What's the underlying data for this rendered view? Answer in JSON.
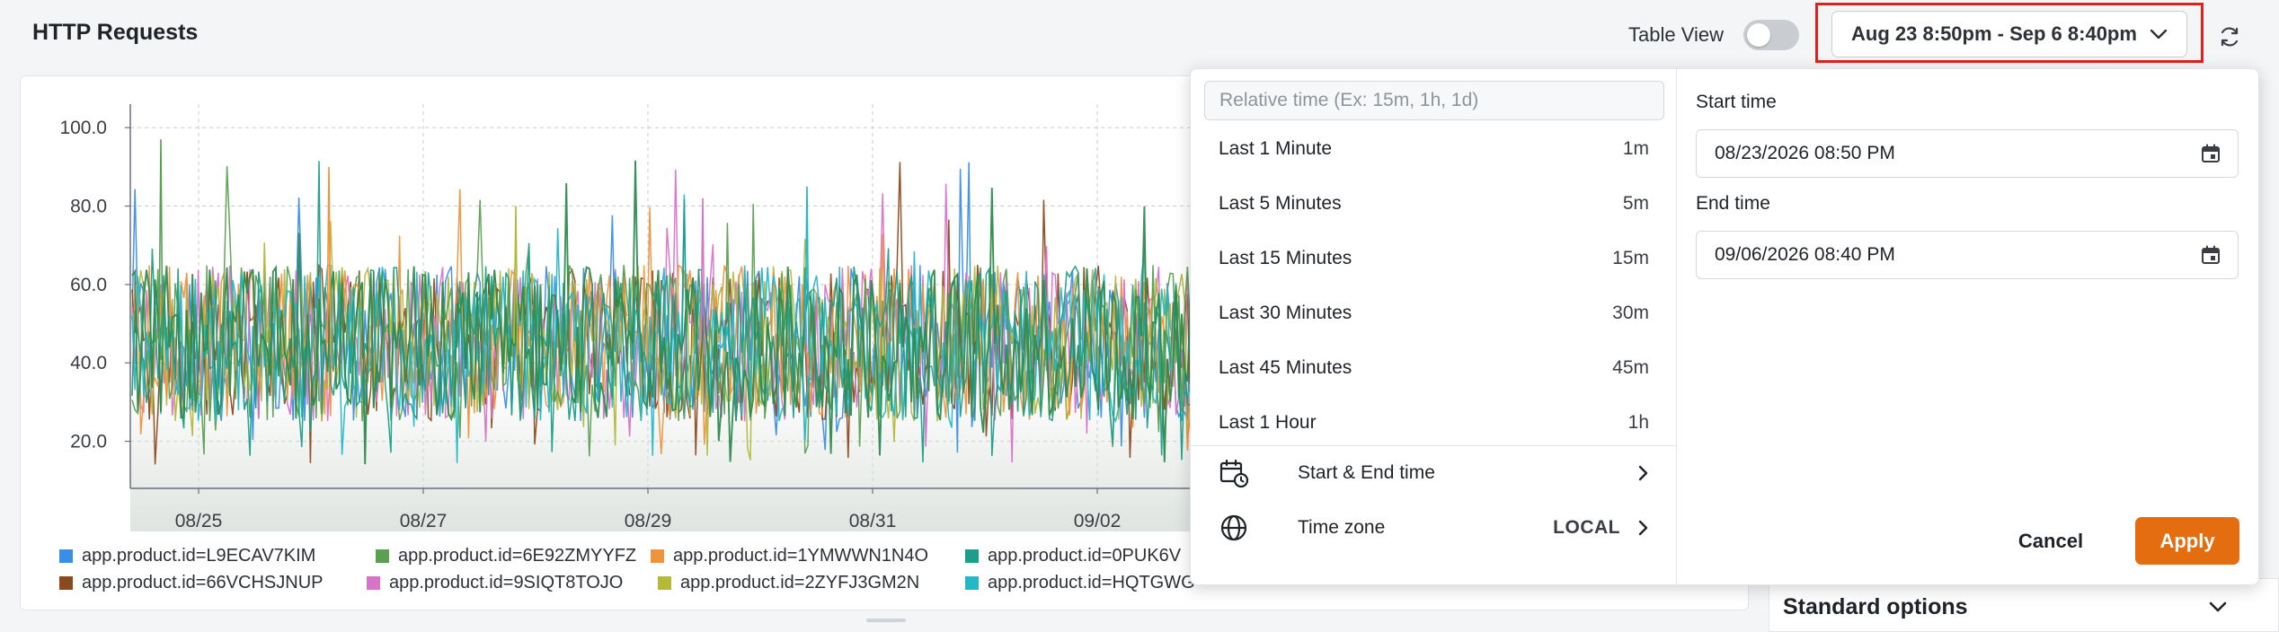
{
  "header": {
    "title": "HTTP Requests",
    "table_view_label": "Table View",
    "table_view_on": false,
    "range_label": "Aug 23 8:50pm - Sep 6 8:40pm"
  },
  "chart_data": {
    "type": "line",
    "y_ticks": [
      "100.0",
      "80.0",
      "60.0",
      "40.0",
      "20.0"
    ],
    "x_ticks": [
      "08/25",
      "08/27",
      "08/29",
      "08/31",
      "09/02"
    ],
    "ylim": [
      8,
      106
    ],
    "grid": true,
    "legend_placement": "bottom",
    "legend": [
      {
        "label": "app.product.id=L9ECAV7KIM",
        "color": "#3a8ee6"
      },
      {
        "label": "app.product.id=6E92ZMYYFZ",
        "color": "#5aa051"
      },
      {
        "label": "app.product.id=1YMWWN1N4O",
        "color": "#f0943b"
      },
      {
        "label": "app.product.id=0PUK6V",
        "color": "#1b9e8a"
      },
      {
        "label": "app.product.id=66VCHSJNUP",
        "color": "#8c4a1c"
      },
      {
        "label": "app.product.id=9SIQT8TOJO",
        "color": "#d972c9"
      },
      {
        "label": "app.product.id=2ZYFJ3GM2N",
        "color": "#b5b83a"
      },
      {
        "label": "app.product.id=HQTGWG",
        "color": "#23b7c9"
      }
    ],
    "series_visual": {
      "colors": [
        "#3a8ee6",
        "#8c4a1c",
        "#d972c9",
        "#b5b83a",
        "#f0943b",
        "#5aa051",
        "#23b7c9",
        "#1b9e8a",
        "#2e8b4e"
      ],
      "typical_range": [
        25,
        65
      ],
      "peak_max": 97
    }
  },
  "picker": {
    "relative_placeholder": "Relative time (Ex: 15m, 1h, 1d)",
    "presets": [
      {
        "label": "Last 1 Minute",
        "short": "1m"
      },
      {
        "label": "Last 5 Minutes",
        "short": "5m"
      },
      {
        "label": "Last 15 Minutes",
        "short": "15m"
      },
      {
        "label": "Last 30 Minutes",
        "short": "30m"
      },
      {
        "label": "Last 45 Minutes",
        "short": "45m"
      },
      {
        "label": "Last 1 Hour",
        "short": "1h"
      }
    ],
    "start_end_label": "Start & End time",
    "timezone_label": "Time zone",
    "timezone_value": "LOCAL",
    "start_label": "Start time",
    "start_value": "08/23/2026 08:50 PM",
    "end_label": "End time",
    "end_value": "09/06/2026 08:40 PM",
    "cancel_label": "Cancel",
    "apply_label": "Apply"
  },
  "side_panel": {
    "standard_options_label": "Standard options"
  }
}
